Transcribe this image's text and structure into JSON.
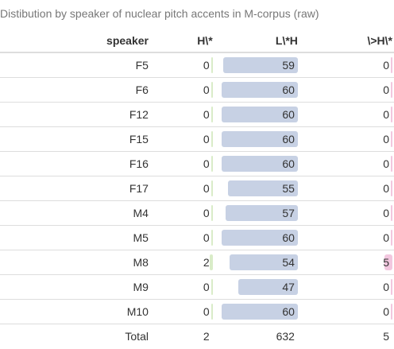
{
  "caption": "Distibution by speaker of nuclear pitch accents in M-corpus (raw)",
  "headers": {
    "speaker": "speaker",
    "h": "H\\*",
    "lh": "L\\*H",
    "dh": "\\>H\\*"
  },
  "colors": {
    "lh_bar": "#c7d1e4",
    "h_bar": "#d9ecc8",
    "dh_bar": "#f2c7df"
  },
  "max_lh": 60,
  "max_small": 5,
  "rows": [
    {
      "speaker": "F5",
      "h": 0,
      "lh": 59,
      "dh": 0
    },
    {
      "speaker": "F6",
      "h": 0,
      "lh": 60,
      "dh": 0
    },
    {
      "speaker": "F12",
      "h": 0,
      "lh": 60,
      "dh": 0
    },
    {
      "speaker": "F15",
      "h": 0,
      "lh": 60,
      "dh": 0
    },
    {
      "speaker": "F16",
      "h": 0,
      "lh": 60,
      "dh": 0
    },
    {
      "speaker": "F17",
      "h": 0,
      "lh": 55,
      "dh": 0
    },
    {
      "speaker": "M4",
      "h": 0,
      "lh": 57,
      "dh": 0
    },
    {
      "speaker": "M5",
      "h": 0,
      "lh": 60,
      "dh": 0
    },
    {
      "speaker": "M8",
      "h": 2,
      "lh": 54,
      "dh": 5
    },
    {
      "speaker": "M9",
      "h": 0,
      "lh": 47,
      "dh": 0
    },
    {
      "speaker": "M10",
      "h": 0,
      "lh": 60,
      "dh": 0
    }
  ],
  "total": {
    "label": "Total",
    "h": 2,
    "lh": 632,
    "dh": 5
  }
}
